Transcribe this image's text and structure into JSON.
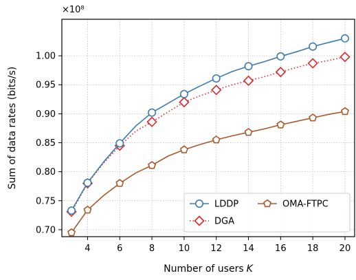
{
  "chart_data": {
    "type": "line",
    "title": "",
    "exponent_label": "×10⁸",
    "xlabel": "Number of users",
    "xlabel_symbol": "K",
    "ylabel": "Sum of data rates (bits/s)",
    "xlim": [
      2.4,
      20.6
    ],
    "ylim": [
      0.688,
      1.063
    ],
    "xticks": [
      4,
      6,
      8,
      10,
      12,
      14,
      16,
      18,
      20
    ],
    "xtick_labels": [
      "4",
      "6",
      "8",
      "10",
      "12",
      "14",
      "16",
      "18",
      "20"
    ],
    "yticks": [
      0.7,
      0.75,
      0.8,
      0.85,
      0.9,
      0.95,
      1.0
    ],
    "ytick_labels": [
      "0.70",
      "0.75",
      "0.80",
      "0.85",
      "0.90",
      "0.95",
      "1.00"
    ],
    "grid": true,
    "legend_position": "bottom-right",
    "series": [
      {
        "name": "LDDP",
        "color": "#3a7bb0",
        "line_style": "solid",
        "marker": "circle",
        "x": [
          3,
          4,
          5,
          6,
          7,
          8,
          9,
          10,
          11,
          12,
          13,
          14,
          15,
          16,
          17,
          18,
          19,
          20
        ],
        "y": [
          0.733,
          0.781,
          0.817,
          0.849,
          0.879,
          0.902,
          0.918,
          0.934,
          0.948,
          0.961,
          0.973,
          0.982,
          0.99,
          0.999,
          1.007,
          1.016,
          1.023,
          1.03
        ],
        "marker_x": [
          3,
          4,
          6,
          8,
          10,
          12,
          14,
          16,
          18,
          20
        ]
      },
      {
        "name": "DGA",
        "color": "#e0242b",
        "line_style": "dotted",
        "marker": "diamond",
        "x": [
          3,
          4,
          5,
          6,
          7,
          8,
          9,
          10,
          11,
          12,
          13,
          14,
          15,
          16,
          17,
          18,
          19,
          20
        ],
        "y": [
          0.731,
          0.78,
          0.815,
          0.845,
          0.87,
          0.886,
          0.903,
          0.92,
          0.931,
          0.941,
          0.95,
          0.957,
          0.964,
          0.972,
          0.98,
          0.987,
          0.992,
          0.998
        ],
        "marker_x": [
          3,
          4,
          6,
          8,
          10,
          12,
          14,
          16,
          18,
          20
        ]
      },
      {
        "name": "OMA-FTPC",
        "color": "#a9582a",
        "line_style": "solid",
        "marker": "pentagon",
        "x": [
          3,
          4,
          5,
          6,
          7,
          8,
          9,
          10,
          11,
          12,
          13,
          14,
          15,
          16,
          17,
          18,
          19,
          20
        ],
        "y": [
          0.695,
          0.734,
          0.759,
          0.78,
          0.798,
          0.811,
          0.827,
          0.838,
          0.847,
          0.855,
          0.862,
          0.868,
          0.874,
          0.881,
          0.887,
          0.893,
          0.899,
          0.904
        ],
        "marker_x": [
          3,
          4,
          6,
          8,
          10,
          12,
          14,
          16,
          18,
          20
        ]
      }
    ]
  }
}
